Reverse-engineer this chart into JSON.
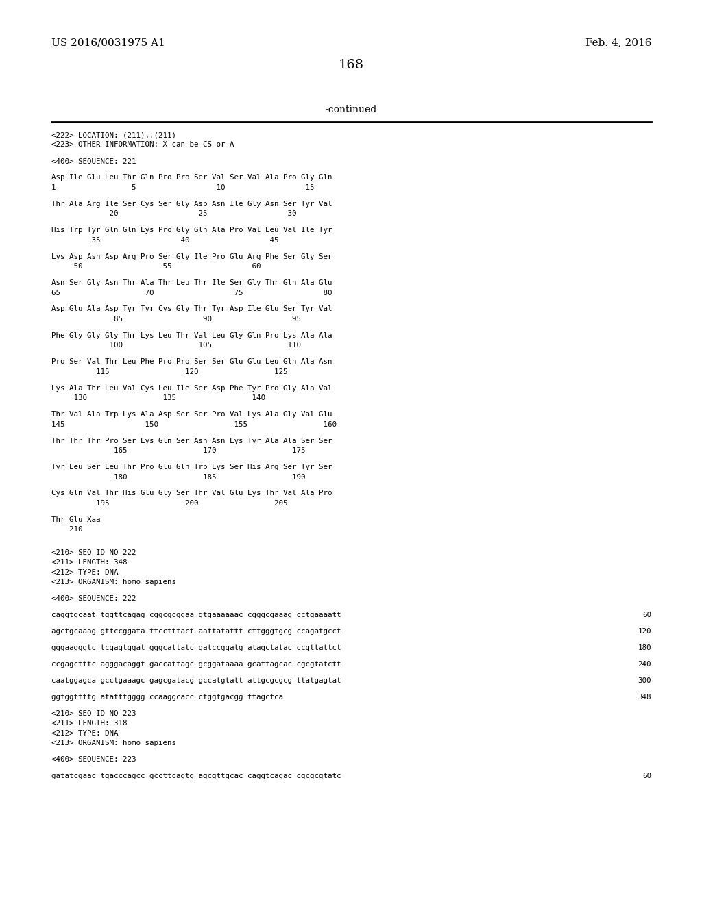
{
  "header_left": "US 2016/0031975 A1",
  "header_right": "Feb. 4, 2016",
  "page_number": "168",
  "continued_label": "-continued",
  "background_color": "#ffffff",
  "text_color": "#000000",
  "content_lines": [
    {
      "text": "<222> LOCATION: (211)..(211)",
      "indent": 0,
      "type": "meta"
    },
    {
      "text": "<223> OTHER INFORMATION: X can be CS or A",
      "indent": 0,
      "type": "meta"
    },
    {
      "text": "",
      "type": "blank"
    },
    {
      "text": "<400> SEQUENCE: 221",
      "indent": 0,
      "type": "meta"
    },
    {
      "text": "",
      "type": "blank"
    },
    {
      "text": "Asp Ile Glu Leu Thr Gln Pro Pro Ser Val Ser Val Ala Pro Gly Gln",
      "indent": 0,
      "type": "seq"
    },
    {
      "text": "1                 5                  10                  15",
      "indent": 0,
      "type": "num"
    },
    {
      "text": "",
      "type": "blank"
    },
    {
      "text": "Thr Ala Arg Ile Ser Cys Ser Gly Asp Asn Ile Gly Asn Ser Tyr Val",
      "indent": 0,
      "type": "seq"
    },
    {
      "text": "             20                  25                  30",
      "indent": 0,
      "type": "num"
    },
    {
      "text": "",
      "type": "blank"
    },
    {
      "text": "His Trp Tyr Gln Gln Lys Pro Gly Gln Ala Pro Val Leu Val Ile Tyr",
      "indent": 0,
      "type": "seq"
    },
    {
      "text": "         35                  40                  45",
      "indent": 0,
      "type": "num"
    },
    {
      "text": "",
      "type": "blank"
    },
    {
      "text": "Lys Asp Asn Asp Arg Pro Ser Gly Ile Pro Glu Arg Phe Ser Gly Ser",
      "indent": 0,
      "type": "seq"
    },
    {
      "text": "     50                  55                  60",
      "indent": 0,
      "type": "num"
    },
    {
      "text": "",
      "type": "blank"
    },
    {
      "text": "Asn Ser Gly Asn Thr Ala Thr Leu Thr Ile Ser Gly Thr Gln Ala Glu",
      "indent": 0,
      "type": "seq"
    },
    {
      "text": "65                   70                  75                  80",
      "indent": 0,
      "type": "num"
    },
    {
      "text": "",
      "type": "blank"
    },
    {
      "text": "Asp Glu Ala Asp Tyr Tyr Cys Gly Thr Tyr Asp Ile Glu Ser Tyr Val",
      "indent": 0,
      "type": "seq"
    },
    {
      "text": "              85                  90                  95",
      "indent": 0,
      "type": "num"
    },
    {
      "text": "",
      "type": "blank"
    },
    {
      "text": "Phe Gly Gly Gly Thr Lys Leu Thr Val Leu Gly Gln Pro Lys Ala Ala",
      "indent": 0,
      "type": "seq"
    },
    {
      "text": "             100                 105                 110",
      "indent": 0,
      "type": "num"
    },
    {
      "text": "",
      "type": "blank"
    },
    {
      "text": "Pro Ser Val Thr Leu Phe Pro Pro Ser Ser Glu Glu Leu Gln Ala Asn",
      "indent": 0,
      "type": "seq"
    },
    {
      "text": "          115                 120                 125",
      "indent": 0,
      "type": "num"
    },
    {
      "text": "",
      "type": "blank"
    },
    {
      "text": "Lys Ala Thr Leu Val Cys Leu Ile Ser Asp Phe Tyr Pro Gly Ala Val",
      "indent": 0,
      "type": "seq"
    },
    {
      "text": "     130                 135                 140",
      "indent": 0,
      "type": "num"
    },
    {
      "text": "",
      "type": "blank"
    },
    {
      "text": "Thr Val Ala Trp Lys Ala Asp Ser Ser Pro Val Lys Ala Gly Val Glu",
      "indent": 0,
      "type": "seq"
    },
    {
      "text": "145                  150                 155                 160",
      "indent": 0,
      "type": "num"
    },
    {
      "text": "",
      "type": "blank"
    },
    {
      "text": "Thr Thr Thr Pro Ser Lys Gln Ser Asn Asn Lys Tyr Ala Ala Ser Ser",
      "indent": 0,
      "type": "seq"
    },
    {
      "text": "              165                 170                 175",
      "indent": 0,
      "type": "num"
    },
    {
      "text": "",
      "type": "blank"
    },
    {
      "text": "Tyr Leu Ser Leu Thr Pro Glu Gln Trp Lys Ser His Arg Ser Tyr Ser",
      "indent": 0,
      "type": "seq"
    },
    {
      "text": "              180                 185                 190",
      "indent": 0,
      "type": "num"
    },
    {
      "text": "",
      "type": "blank"
    },
    {
      "text": "Cys Gln Val Thr His Glu Gly Ser Thr Val Glu Lys Thr Val Ala Pro",
      "indent": 0,
      "type": "seq"
    },
    {
      "text": "          195                 200                 205",
      "indent": 0,
      "type": "num"
    },
    {
      "text": "",
      "type": "blank"
    },
    {
      "text": "Thr Glu Xaa",
      "indent": 0,
      "type": "seq"
    },
    {
      "text": "    210",
      "indent": 0,
      "type": "num"
    },
    {
      "text": "",
      "type": "blank"
    },
    {
      "text": "",
      "type": "blank"
    },
    {
      "text": "<210> SEQ ID NO 222",
      "indent": 0,
      "type": "meta"
    },
    {
      "text": "<211> LENGTH: 348",
      "indent": 0,
      "type": "meta"
    },
    {
      "text": "<212> TYPE: DNA",
      "indent": 0,
      "type": "meta"
    },
    {
      "text": "<213> ORGANISM: homo sapiens",
      "indent": 0,
      "type": "meta"
    },
    {
      "text": "",
      "type": "blank"
    },
    {
      "text": "<400> SEQUENCE: 222",
      "indent": 0,
      "type": "meta"
    },
    {
      "text": "",
      "type": "blank"
    },
    {
      "text": "caggtgcaat tggttcagag cggcgcggaa gtgaaaaaac cgggcgaaag cctgaaaatt",
      "indent": 0,
      "type": "dna",
      "num": "60"
    },
    {
      "text": "",
      "type": "blank"
    },
    {
      "text": "agctgcaaag gttccggata ttcctttact aattatattt cttgggtgcg ccagatgcct",
      "indent": 0,
      "type": "dna",
      "num": "120"
    },
    {
      "text": "",
      "type": "blank"
    },
    {
      "text": "gggaagggtc tcgagtggat gggcattatc gatccggatg atagctatac ccgttattct",
      "indent": 0,
      "type": "dna",
      "num": "180"
    },
    {
      "text": "",
      "type": "blank"
    },
    {
      "text": "ccgagctttc agggacaggt gaccattagc gcggataaaa gcattagcac cgcgtatctt",
      "indent": 0,
      "type": "dna",
      "num": "240"
    },
    {
      "text": "",
      "type": "blank"
    },
    {
      "text": "caatggagca gcctgaaagc gagcgatacg gccatgtatt attgcgcgcg ttatgagtat",
      "indent": 0,
      "type": "dna",
      "num": "300"
    },
    {
      "text": "",
      "type": "blank"
    },
    {
      "text": "ggtggttttg atatttgggg ccaaggcacc ctggtgacgg ttagctca",
      "indent": 0,
      "type": "dna",
      "num": "348"
    },
    {
      "text": "",
      "type": "blank"
    },
    {
      "text": "<210> SEQ ID NO 223",
      "indent": 0,
      "type": "meta"
    },
    {
      "text": "<211> LENGTH: 318",
      "indent": 0,
      "type": "meta"
    },
    {
      "text": "<212> TYPE: DNA",
      "indent": 0,
      "type": "meta"
    },
    {
      "text": "<213> ORGANISM: homo sapiens",
      "indent": 0,
      "type": "meta"
    },
    {
      "text": "",
      "type": "blank"
    },
    {
      "text": "<400> SEQUENCE: 223",
      "indent": 0,
      "type": "meta"
    },
    {
      "text": "",
      "type": "blank"
    },
    {
      "text": "gatatcgaac tgacccagcc gccttcagtg agcgttgcac caggtcagac cgcgcgtatc",
      "indent": 0,
      "type": "dna",
      "num": "60"
    }
  ]
}
